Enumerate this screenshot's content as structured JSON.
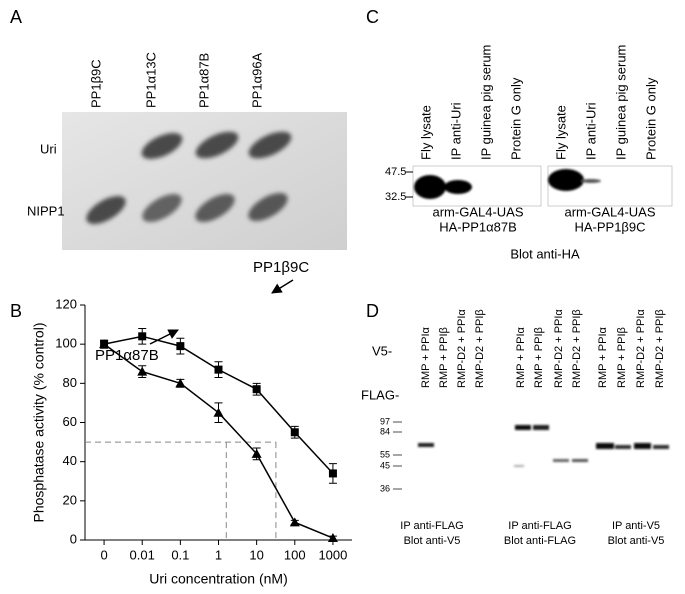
{
  "panel_a": {
    "label": "A",
    "columns": [
      "PP1β9C",
      "PP1α13C",
      "PP1α87B",
      "PP1α96A"
    ],
    "rows": [
      "Uri",
      "NIPP1"
    ]
  },
  "panel_c": {
    "label": "C",
    "lanes": [
      "Fly lysate",
      "IP anti-Uri",
      "IP guinea pig serum",
      "Protein G only"
    ],
    "markers": [
      "47.5",
      "32.5"
    ],
    "blots": [
      [
        "arm-GAL4-UAS",
        "HA-PP1α87B"
      ],
      [
        "arm-GAL4-UAS",
        "HA-PP1β9C"
      ]
    ],
    "caption": "Blot anti-HA"
  },
  "chart_data": {
    "type": "line",
    "panel_label": "B",
    "xlabel": "Uri concentration (nM)",
    "ylabel": "Phosphatase activity (% control)",
    "categories": [
      "0",
      "0.01",
      "0.1",
      "1",
      "10",
      "100",
      "1000"
    ],
    "series": [
      {
        "name": "PP1β9C",
        "color": "#000000",
        "marker": "square",
        "values": [
          100,
          104,
          99,
          87,
          77,
          55,
          34
        ],
        "errors": [
          2,
          4,
          4,
          4,
          3,
          3,
          5
        ]
      },
      {
        "name": "PP1α87B",
        "color": "#000000",
        "marker": "triangle",
        "values": [
          100,
          86,
          80,
          65,
          44,
          9,
          1
        ],
        "errors": [
          2,
          3,
          2,
          5,
          3,
          1,
          1
        ]
      }
    ],
    "ylim": [
      0,
      120
    ],
    "yticks": [
      0,
      20,
      40,
      60,
      80,
      100,
      120
    ],
    "reference_lines": {
      "y": 50,
      "x": [
        1.6,
        32
      ]
    }
  },
  "panel_d": {
    "label": "D",
    "row_labels": [
      "V5-",
      "FLAG-"
    ],
    "lanes": [
      "RMP + PPIα",
      "RMP + PPIβ",
      "RMP-D2 + PPIα",
      "RMP-D2 + PPIβ"
    ],
    "markers": [
      "97",
      "84",
      "55",
      "45",
      "36"
    ],
    "blots": [
      [
        "IP anti-FLAG",
        "Blot anti-V5"
      ],
      [
        "IP anti-FLAG",
        "Blot anti-FLAG"
      ],
      [
        "IP anti-V5",
        "Blot anti-V5"
      ]
    ]
  }
}
